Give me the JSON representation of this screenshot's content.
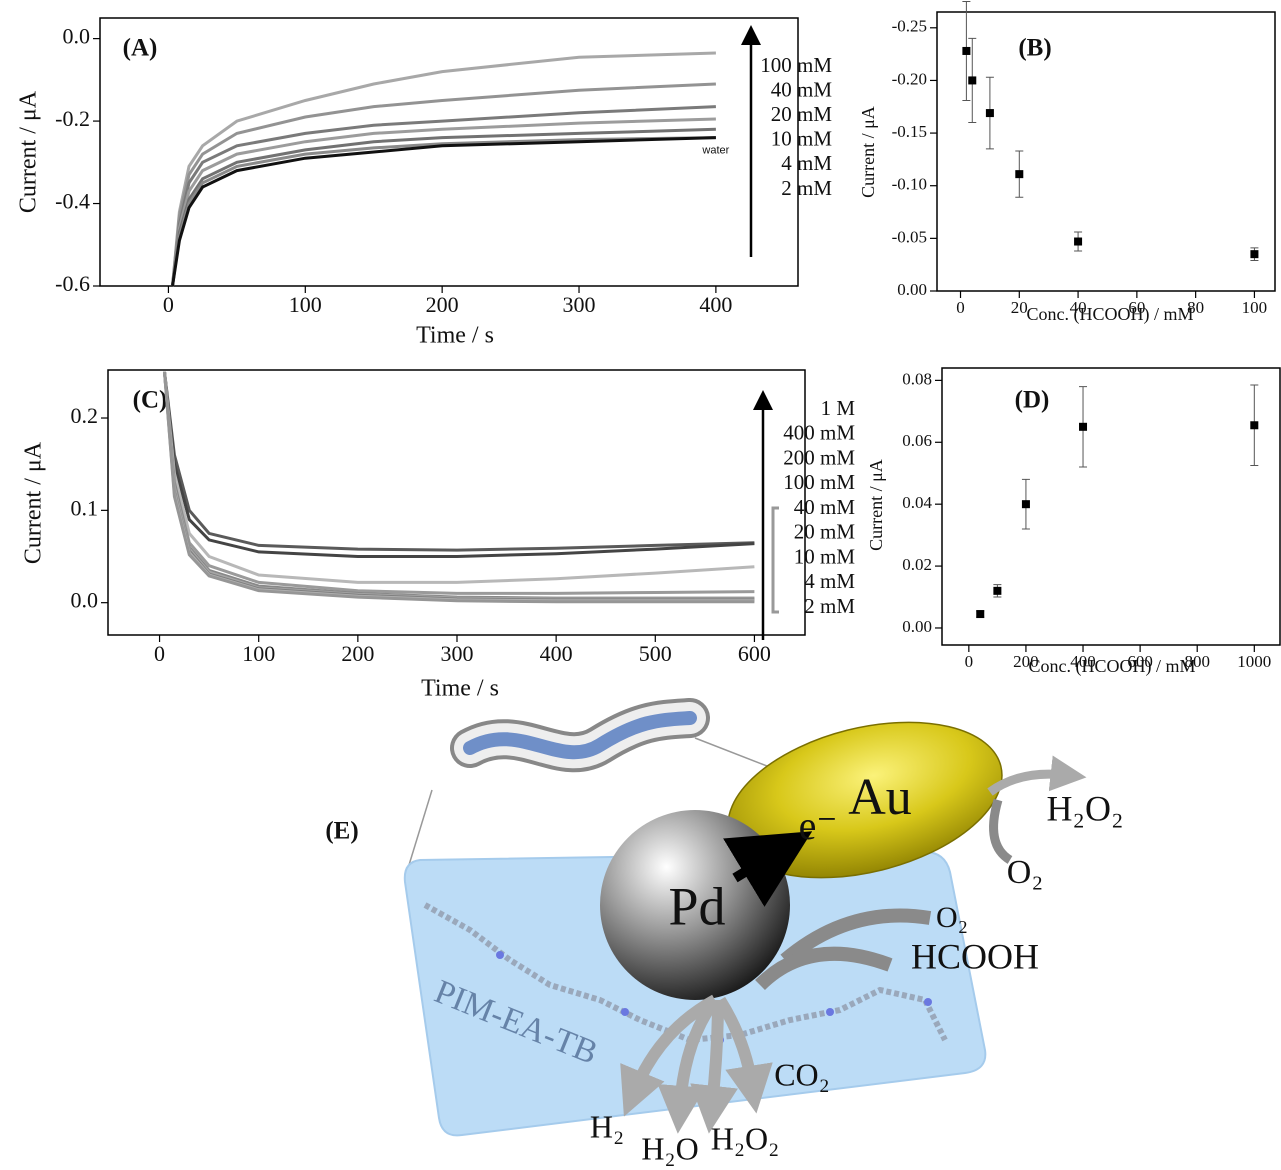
{
  "chart_data": [
    {
      "type": "line",
      "label": "(A)",
      "xlabel": "Time / s",
      "ylabel": "Current / μA",
      "xlim": [
        -50,
        460
      ],
      "ylim": [
        -0.6,
        0.05
      ],
      "xticks": [
        0,
        100,
        200,
        300,
        400
      ],
      "yticks": [
        {
          "value": 0,
          "label": "0.0"
        },
        -0.2,
        -0.4,
        -0.6
      ],
      "x": [
        3,
        8,
        15,
        25,
        50,
        100,
        150,
        200,
        300,
        400
      ],
      "series": [
        {
          "name": "100 mM",
          "color": "#a8a8a8",
          "values": [
            -0.6,
            -0.42,
            -0.31,
            -0.26,
            -0.2,
            -0.15,
            -0.11,
            -0.08,
            -0.045,
            -0.035
          ]
        },
        {
          "name": "40 mM",
          "color": "#939393",
          "values": [
            -0.6,
            -0.43,
            -0.33,
            -0.28,
            -0.23,
            -0.19,
            -0.165,
            -0.15,
            -0.125,
            -0.11
          ]
        },
        {
          "name": "20 mM",
          "color": "#7a7a7a",
          "values": [
            -0.6,
            -0.45,
            -0.35,
            -0.3,
            -0.26,
            -0.23,
            -0.21,
            -0.2,
            -0.18,
            -0.165
          ]
        },
        {
          "name": "10 mM",
          "color": "#9c9c9c",
          "values": [
            -0.6,
            -0.46,
            -0.37,
            -0.32,
            -0.28,
            -0.25,
            -0.23,
            -0.22,
            -0.205,
            -0.195
          ]
        },
        {
          "name": "4 mM",
          "color": "#727272",
          "values": [
            -0.6,
            -0.47,
            -0.39,
            -0.34,
            -0.3,
            -0.27,
            -0.25,
            -0.24,
            -0.23,
            -0.22
          ]
        },
        {
          "name": "2 mM",
          "color": "#8a8a8a",
          "values": [
            -0.6,
            -0.48,
            -0.4,
            -0.35,
            -0.31,
            -0.28,
            -0.265,
            -0.255,
            -0.245,
            -0.24
          ]
        },
        {
          "color": "#111111",
          "values": [
            -0.6,
            -0.49,
            -0.41,
            -0.36,
            -0.32,
            -0.29,
            -0.275,
            -0.26,
            -0.25,
            -0.24
          ]
        }
      ],
      "annotations": [
        "water"
      ]
    },
    {
      "type": "scatter",
      "label": "(B)",
      "xlabel": "Conc. (HCOOH) / mM",
      "ylabel": "Current / μA",
      "xlim": [
        -8,
        107
      ],
      "ylim": [
        0,
        -0.265
      ],
      "xticks": [
        0,
        20,
        40,
        60,
        80,
        100
      ],
      "yticks": [
        {
          "value": 0,
          "label": "0.00"
        },
        -0.05,
        {
          "value": -0.1,
          "label": "-0.10"
        },
        -0.15,
        {
          "value": -0.2,
          "label": "-0.20"
        },
        -0.25
      ],
      "x": [
        2,
        4,
        10,
        20,
        40,
        100
      ],
      "values": [
        -0.228,
        -0.2,
        -0.169,
        -0.111,
        -0.047,
        -0.035
      ],
      "errors": [
        0.047,
        0.04,
        0.034,
        0.022,
        0.009,
        0.006
      ],
      "color": "#000000"
    },
    {
      "type": "line",
      "label": "(C)",
      "xlabel": "Time / s",
      "ylabel": "Current / μA",
      "xlim": [
        -52,
        651
      ],
      "ylim": [
        -0.035,
        0.252
      ],
      "xticks": [
        0,
        100,
        200,
        300,
        400,
        500,
        600
      ],
      "yticks": [
        {
          "value": 0,
          "label": "0.0"
        },
        0.1,
        0.2
      ],
      "x": [
        5,
        15,
        30,
        50,
        100,
        200,
        300,
        400,
        500,
        600
      ],
      "series": [
        {
          "name": "1 M",
          "color": "#5a5a5a",
          "values": [
            0.25,
            0.16,
            0.1,
            0.075,
            0.062,
            0.058,
            0.057,
            0.059,
            0.062,
            0.065
          ]
        },
        {
          "name": "400 mM",
          "color": "#444444",
          "values": [
            0.25,
            0.15,
            0.09,
            0.068,
            0.055,
            0.05,
            0.05,
            0.053,
            0.058,
            0.064
          ]
        },
        {
          "name": "200 mM",
          "color": "#b8b8b8",
          "values": [
            0.25,
            0.14,
            0.075,
            0.05,
            0.03,
            0.022,
            0.022,
            0.026,
            0.032,
            0.039
          ]
        },
        {
          "name": "100 mM",
          "color": "#9a9a9a",
          "values": [
            0.25,
            0.13,
            0.065,
            0.04,
            0.022,
            0.013,
            0.01,
            0.01,
            0.011,
            0.012
          ]
        },
        {
          "name": "40 mM",
          "color": "#888888",
          "values": [
            0.25,
            0.13,
            0.06,
            0.035,
            0.018,
            0.01,
            0.006,
            0.005,
            0.005,
            0.005
          ]
        },
        {
          "name": "20 mM",
          "color": "#a5a5a5",
          "values": [
            0.25,
            0.125,
            0.058,
            0.033,
            0.016,
            0.009,
            0.005,
            0.004,
            0.004,
            0.004
          ]
        },
        {
          "name": "10 mM",
          "color": "#7f7f7f",
          "values": [
            0.25,
            0.12,
            0.056,
            0.031,
            0.015,
            0.008,
            0.004,
            0.003,
            0.003,
            0.003
          ]
        },
        {
          "name": "4 mM",
          "color": "#b0b0b0",
          "values": [
            0.25,
            0.118,
            0.054,
            0.03,
            0.014,
            0.007,
            0.003,
            0.002,
            0.002,
            0.002
          ]
        },
        {
          "name": "2 mM",
          "color": "#969696",
          "values": [
            0.25,
            0.115,
            0.052,
            0.029,
            0.013,
            0.006,
            0.002,
            0.001,
            0.001,
            0.001
          ]
        }
      ]
    },
    {
      "type": "scatter",
      "label": "(D)",
      "xlabel": "Conc. (HCOOH) / mM",
      "ylabel": "Current / μA",
      "xlim": [
        -94,
        1090
      ],
      "ylim": [
        -0.0055,
        0.084
      ],
      "xticks": [
        0,
        200,
        400,
        600,
        800,
        1000
      ],
      "yticks": [
        {
          "value": 0,
          "label": "0.00"
        },
        0.02,
        0.04,
        0.06,
        0.08
      ],
      "x": [
        40,
        100,
        200,
        400,
        1000
      ],
      "values": [
        0.0045,
        0.012,
        0.04,
        0.065,
        0.0655
      ],
      "errors": [
        0.001,
        0.002,
        0.008,
        0.013,
        0.013
      ],
      "color": "#000000"
    }
  ],
  "diagram": {
    "label": "(E)",
    "au": "Au",
    "pd": "Pd",
    "electron": "e⁻",
    "membrane": "PIM-EA-TB",
    "au_product": "H₂O₂",
    "au_reactant": "O₂",
    "pd_reactants": [
      "O₂",
      "HCOOH"
    ],
    "pd_products": [
      "H₂",
      "H₂O",
      "H₂O₂",
      "CO₂"
    ]
  }
}
